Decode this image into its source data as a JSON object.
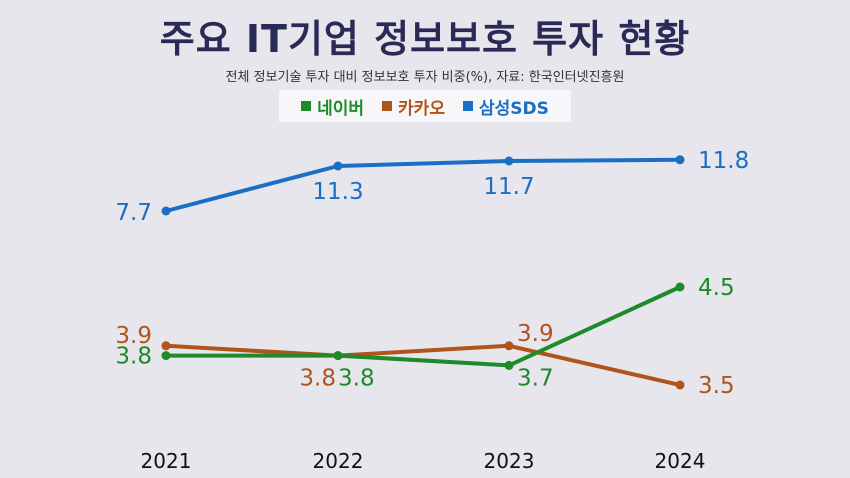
{
  "header": {
    "title": "주요 IT기업 정보보호 투자 현황",
    "subtitle": "전체 정보기술 투자 대비 정보보호 투자 비중(%), 자료: 한국인터넷진흥원"
  },
  "colors": {
    "naver": "#1e8a2a",
    "kakao": "#b0541b",
    "samsung_sds": "#1a6fc4"
  },
  "chart_data": {
    "type": "line",
    "title": "주요 IT기업 정보보호 투자 현황",
    "subtitle": "전체 정보기술 투자 대비 정보보호 투자 비중(%), 자료: 한국인터넷진흥원",
    "categories": [
      "2021",
      "2022",
      "2023",
      "2024"
    ],
    "legend_position": "top-center",
    "grid": false,
    "series": [
      {
        "name": "네이버",
        "color": "#1e8a2a",
        "values": [
          3.8,
          3.8,
          3.7,
          4.5
        ],
        "labels": [
          "3.8",
          "3.8",
          "3.7",
          "4.5"
        ]
      },
      {
        "name": "카카오",
        "color": "#b0541b",
        "values": [
          3.9,
          3.8,
          3.9,
          3.5
        ],
        "labels": [
          "3.9",
          "3.8",
          "3.9",
          "3.5"
        ]
      },
      {
        "name": "삼성SDS",
        "color": "#1a6fc4",
        "values": [
          7.7,
          11.3,
          11.7,
          11.8
        ],
        "labels": [
          "7.7",
          "11.3",
          "11.7",
          "11.8"
        ]
      }
    ]
  }
}
